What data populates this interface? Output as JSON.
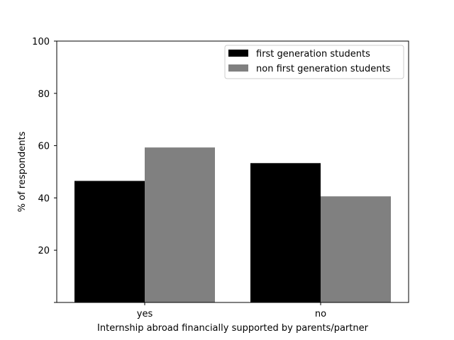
{
  "chart_data": {
    "type": "bar",
    "categories": [
      "yes",
      "no"
    ],
    "series": [
      {
        "name": "first generation students",
        "values": [
          46.5,
          53.3
        ],
        "color": "#000000"
      },
      {
        "name": "non first generation students",
        "values": [
          59.3,
          40.6
        ],
        "color": "#808080"
      }
    ],
    "xlabel": "Internship abroad financially supported by parents/partner",
    "ylabel": "% of respondents",
    "ylim": [
      0,
      100
    ],
    "yticks": [
      "",
      "20",
      "40",
      "60",
      "80",
      "100"
    ],
    "ytick_values": [
      0,
      20,
      40,
      60,
      80,
      100
    ],
    "grid": false,
    "legend_position": "top-right"
  }
}
